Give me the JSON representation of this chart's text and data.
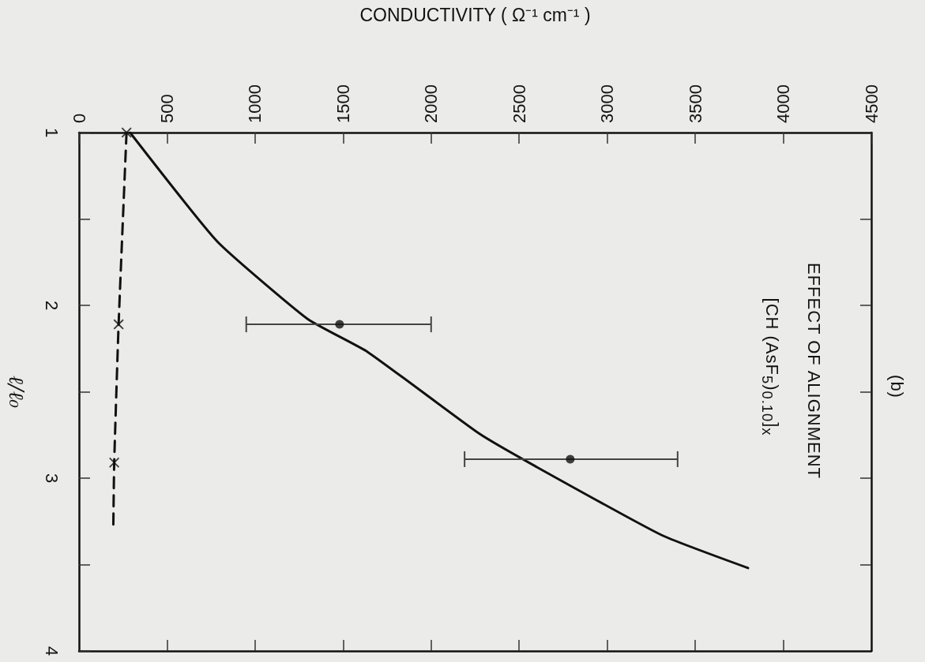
{
  "chart_data": {
    "type": "line",
    "xlabel": "CONDUCTIVITY ( Ω⁻¹ cm⁻¹ )",
    "ylabel": "ℓ/ℓ₀",
    "annotations": [
      "EFFECT OF ALIGNMENT",
      "[CH (AsF$_{5}$)$_{0.10}$]$_{x}$",
      "(b)"
    ],
    "xlim": [
      0,
      4500
    ],
    "xticks": [
      0,
      500,
      1000,
      1500,
      2000,
      2500,
      3000,
      3500,
      4000,
      4500
    ],
    "ylim": [
      4,
      1
    ],
    "yticks": [
      1,
      {
        "value": 1.5,
        "label": null
      },
      2,
      {
        "value": 2.5,
        "label": null
      },
      3,
      {
        "value": 3.5,
        "label": null
      },
      4
    ],
    "series": [
      {
        "type": "line",
        "color": "#111111",
        "x": [
          290,
          785,
          1300,
          1640,
          2270,
          2590,
          3310,
          3800
        ],
        "values": [
          1,
          1.63,
          2.08,
          2.27,
          2.74,
          2.93,
          3.33,
          3.52
        ],
        "marker": "none",
        "line_style": "solid"
      },
      {
        "type": "scatter",
        "color": "#111111",
        "x": [
          1480,
          2790
        ],
        "values": [
          2.11,
          2.89
        ],
        "xerrors": [
          [
            950,
            2000
          ],
          [
            2190,
            3400
          ]
        ],
        "marker": "circle"
      },
      {
        "type": "line",
        "color": "#111111",
        "x": [
          270,
          225,
          200,
          195
        ],
        "values": [
          1,
          2.11,
          2.91,
          3.28
        ],
        "marker": "none",
        "line_style": "dashed"
      },
      {
        "type": "scatter",
        "color": "#111111",
        "x": [
          270,
          225,
          200
        ],
        "values": [
          1,
          2.11,
          2.91
        ],
        "marker": "cross"
      }
    ]
  }
}
